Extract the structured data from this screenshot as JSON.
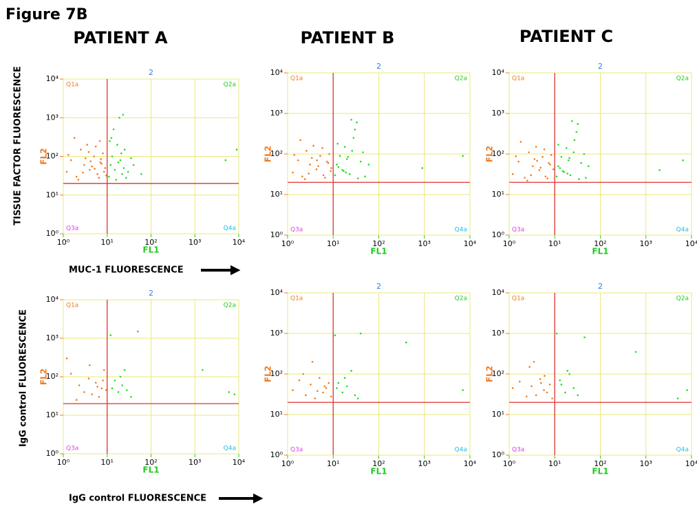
{
  "figure": {
    "title": "Figure 7B",
    "patients": [
      "PATIENT A",
      "PATIENT B",
      "PATIENT C"
    ],
    "row_labels": [
      "TISSUE FACTOR FLUORESCENCE",
      "IgG control FLUORESCENCE"
    ],
    "x_captions": [
      "MUC-1 FLUORESCENCE",
      "IgG control FLUORESCENCE"
    ]
  },
  "chart_data": [
    {
      "type": "scatter",
      "top_label": "2",
      "xlabel": "FL1",
      "ylabel": "FL2",
      "quadrant_labels": [
        "Q1a",
        "Q2a",
        "Q3a",
        "Q4a"
      ],
      "log_x": true,
      "log_y": true,
      "grid": true,
      "xlim": [
        1,
        10000
      ],
      "ylim": [
        1,
        10000
      ],
      "xticks": [
        {
          "value": 1,
          "label": "10⁰"
        },
        {
          "value": 10,
          "label": "10¹"
        },
        {
          "value": 100,
          "label": "10²"
        },
        {
          "value": 1000,
          "label": "10³"
        },
        {
          "value": 10000,
          "label": "10⁴"
        }
      ],
      "yticks": [
        {
          "value": 1,
          "label": "10⁰"
        },
        {
          "value": 10,
          "label": "10¹"
        },
        {
          "value": 100,
          "label": "10²"
        },
        {
          "value": 1000,
          "label": "10³"
        },
        {
          "value": 10000,
          "label": "10⁴"
        }
      ],
      "gate": {
        "x": 10,
        "y": 20
      },
      "series": [
        {
          "color": "#f07a1e",
          "x": [
            1.2,
            1.5,
            2,
            2.5,
            3,
            3.5,
            4,
            5,
            6,
            7,
            8,
            9,
            1.8,
            2.2,
            3.2,
            4.5,
            5.5,
            6.5,
            7.5,
            8.5,
            1.3,
            2.8,
            4.2,
            6.8,
            9.5,
            3.8,
            5.2,
            7.2
          ],
          "values": [
            40,
            80,
            30,
            150,
            60,
            200,
            45,
            100,
            35,
            70,
            120,
            50,
            300,
            25,
            90,
            55,
            180,
            28,
            65,
            40,
            110,
            38,
            75,
            250,
            32,
            130,
            48,
            85
          ]
        },
        {
          "color": "#22dd22",
          "x": [
            11,
            12,
            13,
            15,
            17,
            20,
            22,
            25,
            14,
            16,
            18,
            21,
            24,
            30,
            35,
            12.5,
            19,
            27,
            40,
            60,
            11.5,
            23,
            5000,
            9000
          ],
          "values": [
            30,
            60,
            100,
            45,
            200,
            80,
            35,
            150,
            500,
            25,
            70,
            120,
            50,
            40,
            90,
            300,
            1000,
            28,
            60,
            35,
            250,
            1200,
            80,
            150
          ]
        }
      ]
    },
    {
      "type": "scatter",
      "top_label": "2",
      "xlabel": "FL1",
      "ylabel": "FL2",
      "quadrant_labels": [
        "Q1a",
        "Q2a",
        "Q3a",
        "Q4a"
      ],
      "log_x": true,
      "log_y": true,
      "grid": true,
      "xlim": [
        1,
        10000
      ],
      "ylim": [
        1,
        10000
      ],
      "xticks": [
        {
          "value": 1,
          "label": "10⁰"
        },
        {
          "value": 10,
          "label": "10¹"
        },
        {
          "value": 100,
          "label": "10²"
        },
        {
          "value": 1000,
          "label": "10³"
        },
        {
          "value": 10000,
          "label": "10⁴"
        }
      ],
      "yticks": [
        {
          "value": 1,
          "label": "10⁰"
        },
        {
          "value": 10,
          "label": "10¹"
        },
        {
          "value": 100,
          "label": "10²"
        },
        {
          "value": 1000,
          "label": "10³"
        },
        {
          "value": 10000,
          "label": "10⁴"
        }
      ],
      "gate": {
        "x": 10,
        "y": 20
      },
      "series": [
        {
          "color": "#f07a1e",
          "x": [
            1.3,
            1.7,
            2.1,
            2.6,
            3.1,
            3.7,
            4.3,
            5.2,
            6.1,
            7.3,
            8.2,
            9.1,
            1.9,
            2.4,
            3.4,
            4.7,
            5.8,
            6.6,
            7.8,
            8.8,
            1.4,
            2.9,
            4.4
          ],
          "values": [
            35,
            70,
            28,
            120,
            55,
            160,
            42,
            90,
            30,
            65,
            100,
            45,
            220,
            24,
            80,
            50,
            140,
            26,
            60,
            38,
            95,
            33,
            70
          ]
        },
        {
          "color": "#22dd22",
          "x": [
            11,
            12,
            14,
            16,
            18,
            20,
            23,
            26,
            30,
            35,
            40,
            45,
            13,
            17,
            21,
            28,
            33,
            50,
            60,
            12.5,
            19,
            25,
            900,
            7000
          ],
          "values": [
            30,
            55,
            90,
            40,
            150,
            75,
            32,
            120,
            400,
            25,
            65,
            110,
            48,
            38,
            85,
            250,
            600,
            28,
            55,
            180,
            35,
            700,
            45,
            90
          ]
        }
      ]
    },
    {
      "type": "scatter",
      "top_label": "2",
      "xlabel": "FL1",
      "ylabel": "FL2",
      "quadrant_labels": [
        "Q1a",
        "Q2a",
        "Q3a",
        "Q4a"
      ],
      "log_x": true,
      "log_y": true,
      "grid": true,
      "xlim": [
        1,
        10000
      ],
      "ylim": [
        1,
        10000
      ],
      "xticks": [
        {
          "value": 1,
          "label": "10⁰"
        },
        {
          "value": 10,
          "label": "10¹"
        },
        {
          "value": 100,
          "label": "10²"
        },
        {
          "value": 1000,
          "label": "10³"
        },
        {
          "value": 10000,
          "label": "10⁴"
        }
      ],
      "yticks": [
        {
          "value": 1,
          "label": "10⁰"
        },
        {
          "value": 10,
          "label": "10¹"
        },
        {
          "value": 100,
          "label": "10²"
        },
        {
          "value": 1000,
          "label": "10³"
        },
        {
          "value": 10000,
          "label": "10⁴"
        }
      ],
      "gate": {
        "x": 10,
        "y": 20
      },
      "series": [
        {
          "color": "#f07a1e",
          "x": [
            1.2,
            1.6,
            2.2,
            2.7,
            3.3,
            3.9,
            4.6,
            5.4,
            6.3,
            7.4,
            8.4,
            9.3,
            1.8,
            2.5,
            3.6,
            4.9,
            5.9,
            6.9,
            7.9,
            1.4,
            3,
            4.1
          ],
          "values": [
            32,
            65,
            26,
            110,
            50,
            150,
            40,
            85,
            28,
            60,
            95,
            42,
            200,
            22,
            75,
            46,
            130,
            25,
            55,
            88,
            30,
            68
          ]
        },
        {
          "color": "#22dd22",
          "x": [
            11,
            12,
            14,
            15,
            18,
            20,
            22,
            26,
            30,
            34,
            38,
            44,
            13,
            16,
            21,
            27,
            32,
            48,
            55,
            12,
            19,
            24,
            2000,
            6500
          ],
          "values": [
            28,
            50,
            85,
            38,
            140,
            70,
            30,
            110,
            350,
            24,
            60,
            100,
            45,
            36,
            80,
            220,
            550,
            26,
            50,
            170,
            33,
            650,
            40,
            70
          ]
        }
      ]
    },
    {
      "type": "scatter",
      "top_label": "2",
      "xlabel": "FL1",
      "ylabel": "FL2",
      "quadrant_labels": [
        "Q1a",
        "Q2a",
        "Q3a",
        "Q4a"
      ],
      "log_x": true,
      "log_y": true,
      "grid": true,
      "xlim": [
        1,
        10000
      ],
      "ylim": [
        1,
        10000
      ],
      "xticks": [
        {
          "value": 1,
          "label": "10⁰"
        },
        {
          "value": 10,
          "label": "10¹"
        },
        {
          "value": 100,
          "label": "10²"
        },
        {
          "value": 1000,
          "label": "10³"
        },
        {
          "value": 10000,
          "label": "10⁴"
        }
      ],
      "yticks": [
        {
          "value": 1,
          "label": "10⁰"
        },
        {
          "value": 10,
          "label": "10¹"
        },
        {
          "value": 100,
          "label": "10²"
        },
        {
          "value": 1000,
          "label": "10³"
        },
        {
          "value": 10000,
          "label": "10⁴"
        }
      ],
      "gate": {
        "x": 10,
        "y": 20
      },
      "series": [
        {
          "color": "#f07a1e",
          "x": [
            1.2,
            1.5,
            2.3,
            3,
            3.8,
            4.5,
            5.5,
            6.5,
            7.5,
            8.5,
            9.5,
            2,
            4,
            6,
            8
          ],
          "values": [
            300,
            120,
            60,
            40,
            90,
            35,
            70,
            30,
            50,
            150,
            45,
            25,
            200,
            55,
            80
          ]
        },
        {
          "color": "#22dd22",
          "x": [
            12,
            15,
            18,
            22,
            25,
            35,
            50,
            1500,
            6000,
            8000,
            13,
            20,
            28
          ],
          "values": [
            1200,
            80,
            40,
            60,
            150,
            30,
            1500,
            150,
            40,
            35,
            50,
            100,
            45
          ]
        }
      ]
    },
    {
      "type": "scatter",
      "top_label": "2",
      "xlabel": "FL1",
      "ylabel": "FL2",
      "quadrant_labels": [
        "Q1a",
        "Q2a",
        "Q3a",
        "Q4a"
      ],
      "log_x": true,
      "log_y": true,
      "grid": true,
      "xlim": [
        1,
        10000
      ],
      "ylim": [
        1,
        10000
      ],
      "xticks": [
        {
          "value": 1,
          "label": "10⁰"
        },
        {
          "value": 10,
          "label": "10¹"
        },
        {
          "value": 100,
          "label": "10²"
        },
        {
          "value": 1000,
          "label": "10³"
        },
        {
          "value": 10000,
          "label": "10⁴"
        }
      ],
      "yticks": [
        {
          "value": 1,
          "label": "10⁰"
        },
        {
          "value": 10,
          "label": "10¹"
        },
        {
          "value": 100,
          "label": "10²"
        },
        {
          "value": 1000,
          "label": "10³"
        },
        {
          "value": 10000,
          "label": "10⁴"
        }
      ],
      "gate": {
        "x": 10,
        "y": 20
      },
      "series": [
        {
          "color": "#f07a1e",
          "x": [
            1.3,
            1.8,
            2.5,
            3.2,
            4,
            5,
            6,
            7,
            8,
            9,
            2.2,
            4.5,
            6.5,
            3.5
          ],
          "values": [
            40,
            70,
            30,
            55,
            25,
            80,
            35,
            45,
            60,
            28,
            100,
            38,
            50,
            200
          ]
        },
        {
          "color": "#22dd22",
          "x": [
            11,
            13,
            16,
            20,
            25,
            30,
            40,
            400,
            7000,
            12,
            18,
            35
          ],
          "values": [
            900,
            60,
            35,
            50,
            120,
            30,
            1000,
            600,
            40,
            45,
            80,
            25
          ]
        }
      ]
    },
    {
      "type": "scatter",
      "top_label": "2",
      "xlabel": "FL1",
      "ylabel": "FL2",
      "quadrant_labels": [
        "Q1a",
        "Q2a",
        "Q3a",
        "Q4a"
      ],
      "log_x": true,
      "log_y": true,
      "grid": true,
      "xlim": [
        1,
        10000
      ],
      "ylim": [
        1,
        10000
      ],
      "xticks": [
        {
          "value": 1,
          "label": "10⁰"
        },
        {
          "value": 10,
          "label": "10¹"
        },
        {
          "value": 100,
          "label": "10²"
        },
        {
          "value": 1000,
          "label": "10³"
        },
        {
          "value": 10000,
          "label": "10⁴"
        }
      ],
      "yticks": [
        {
          "value": 1,
          "label": "10⁰"
        },
        {
          "value": 10,
          "label": "10¹"
        },
        {
          "value": 100,
          "label": "10²"
        },
        {
          "value": 1000,
          "label": "10³"
        },
        {
          "value": 10000,
          "label": "10⁴"
        }
      ],
      "gate": {
        "x": 10,
        "y": 20
      },
      "series": [
        {
          "color": "#f07a1e",
          "x": [
            1.2,
            1.7,
            2.4,
            3.1,
            3.9,
            4.8,
            5.8,
            6.8,
            7.8,
            8.8,
            2.8,
            5,
            3.5,
            6
          ],
          "values": [
            45,
            65,
            28,
            50,
            30,
            75,
            40,
            35,
            55,
            25,
            150,
            60,
            200,
            90
          ]
        },
        {
          "color": "#22dd22",
          "x": [
            11,
            14,
            17,
            21,
            26,
            32,
            45,
            600,
            5000,
            8000,
            13,
            19
          ],
          "values": [
            1000,
            55,
            35,
            100,
            45,
            30,
            800,
            350,
            25,
            40,
            70,
            120
          ]
        }
      ]
    }
  ]
}
